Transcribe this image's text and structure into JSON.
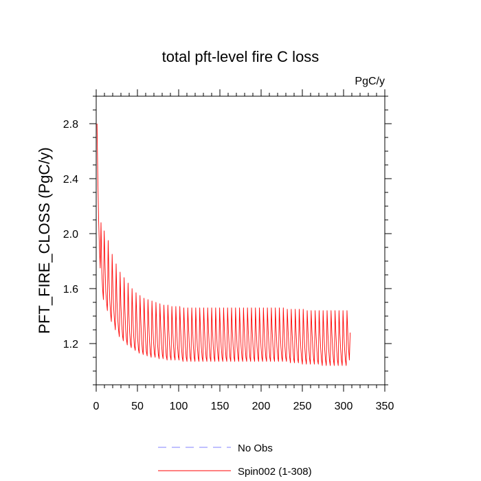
{
  "chart_data": {
    "type": "line",
    "title": "total pft-level fire C loss",
    "units_label": "PgC/y",
    "ylabel": "PFT_FIRE_CLOSS  (PgC/y)",
    "xlabel": "",
    "xlim": [
      0,
      350
    ],
    "ylim": [
      0.9,
      3.0
    ],
    "x_ticks": [
      0,
      50,
      100,
      150,
      200,
      250,
      300,
      350
    ],
    "x_tick_labels": [
      "0",
      "50",
      "100",
      "150",
      "200",
      "250",
      "300",
      "350"
    ],
    "x_minor_step": 10,
    "y_ticks": [
      1.2,
      1.6,
      2.0,
      2.4,
      2.8
    ],
    "y_tick_labels": [
      "1.2",
      "1.6",
      "2.0",
      "2.4",
      "2.8"
    ],
    "y_minor_step": 0.1,
    "grid": false,
    "legend_position": "bottom",
    "series": [
      {
        "name": "No Obs",
        "color": "#8080ff",
        "dash": "dashed",
        "values": []
      },
      {
        "name": "Spin002 (1-308)",
        "color": "#ff0000",
        "dash": "solid",
        "x_start": 1,
        "x_end": 308,
        "cycle_length": 5,
        "values": [
          2.8,
          2.4,
          2.1,
          1.9,
          1.75,
          2.08,
          1.72,
          1.6,
          1.52,
          2.02,
          1.78,
          1.58,
          1.5,
          1.44,
          1.95,
          1.68,
          1.52,
          1.42,
          1.36,
          1.85,
          1.6,
          1.45,
          1.36,
          1.3,
          1.78,
          1.52,
          1.38,
          1.3,
          1.25,
          1.72,
          1.48,
          1.34,
          1.26,
          1.22,
          1.68,
          1.45,
          1.3,
          1.23,
          1.19,
          1.64,
          1.42,
          1.28,
          1.2,
          1.17,
          1.6,
          1.4,
          1.26,
          1.18,
          1.15,
          1.57,
          1.38,
          1.24,
          1.16,
          1.13,
          1.55,
          1.37,
          1.23,
          1.15,
          1.12,
          1.53,
          1.36,
          1.22,
          1.14,
          1.11,
          1.52,
          1.35,
          1.21,
          1.13,
          1.1,
          1.51,
          1.34,
          1.21,
          1.13,
          1.1,
          1.5,
          1.33,
          1.2,
          1.12,
          1.09,
          1.49,
          1.33,
          1.2,
          1.12,
          1.09,
          1.48,
          1.32,
          1.19,
          1.11,
          1.08,
          1.48,
          1.32,
          1.19,
          1.11,
          1.08,
          1.47,
          1.31,
          1.19,
          1.11,
          1.08,
          1.47,
          1.31,
          1.19,
          1.11,
          1.08,
          1.47,
          1.31,
          1.18,
          1.1,
          1.07,
          1.46,
          1.31,
          1.18,
          1.1,
          1.07,
          1.46,
          1.31,
          1.18,
          1.1,
          1.07,
          1.46,
          1.31,
          1.18,
          1.1,
          1.07,
          1.46,
          1.3,
          1.18,
          1.1,
          1.07,
          1.46,
          1.3,
          1.18,
          1.1,
          1.07,
          1.46,
          1.3,
          1.18,
          1.1,
          1.07,
          1.46,
          1.3,
          1.18,
          1.1,
          1.07,
          1.46,
          1.3,
          1.18,
          1.1,
          1.07,
          1.46,
          1.3,
          1.18,
          1.1,
          1.07,
          1.46,
          1.3,
          1.18,
          1.1,
          1.07,
          1.46,
          1.3,
          1.18,
          1.1,
          1.07,
          1.46,
          1.3,
          1.18,
          1.1,
          1.07,
          1.46,
          1.3,
          1.18,
          1.1,
          1.07,
          1.46,
          1.3,
          1.18,
          1.1,
          1.07,
          1.46,
          1.3,
          1.18,
          1.1,
          1.07,
          1.46,
          1.3,
          1.18,
          1.1,
          1.07,
          1.46,
          1.3,
          1.18,
          1.1,
          1.07,
          1.46,
          1.3,
          1.18,
          1.1,
          1.07,
          1.46,
          1.3,
          1.18,
          1.1,
          1.07,
          1.46,
          1.3,
          1.18,
          1.1,
          1.07,
          1.46,
          1.3,
          1.18,
          1.1,
          1.07,
          1.46,
          1.3,
          1.18,
          1.1,
          1.07,
          1.46,
          1.3,
          1.18,
          1.1,
          1.07,
          1.46,
          1.3,
          1.18,
          1.1,
          1.07,
          1.46,
          1.3,
          1.18,
          1.1,
          1.07,
          1.46,
          1.3,
          1.18,
          1.1,
          1.07,
          1.45,
          1.3,
          1.18,
          1.1,
          1.06,
          1.45,
          1.29,
          1.17,
          1.09,
          1.06,
          1.45,
          1.29,
          1.17,
          1.09,
          1.06,
          1.45,
          1.29,
          1.17,
          1.09,
          1.05,
          1.45,
          1.29,
          1.17,
          1.09,
          1.05,
          1.44,
          1.29,
          1.17,
          1.09,
          1.05,
          1.44,
          1.29,
          1.17,
          1.09,
          1.05,
          1.44,
          1.28,
          1.17,
          1.08,
          1.05,
          1.44,
          1.28,
          1.16,
          1.08,
          1.04,
          1.44,
          1.28,
          1.16,
          1.08,
          1.04,
          1.44,
          1.28,
          1.16,
          1.08,
          1.04,
          1.44,
          1.28,
          1.16,
          1.08,
          1.04,
          1.44,
          1.28,
          1.16,
          1.08,
          1.04,
          1.44,
          1.28,
          1.16,
          1.08,
          1.04,
          1.44,
          1.28,
          1.16,
          1.08,
          1.04,
          1.44,
          1.28,
          1.16,
          1.08,
          1.28
        ]
      }
    ]
  }
}
